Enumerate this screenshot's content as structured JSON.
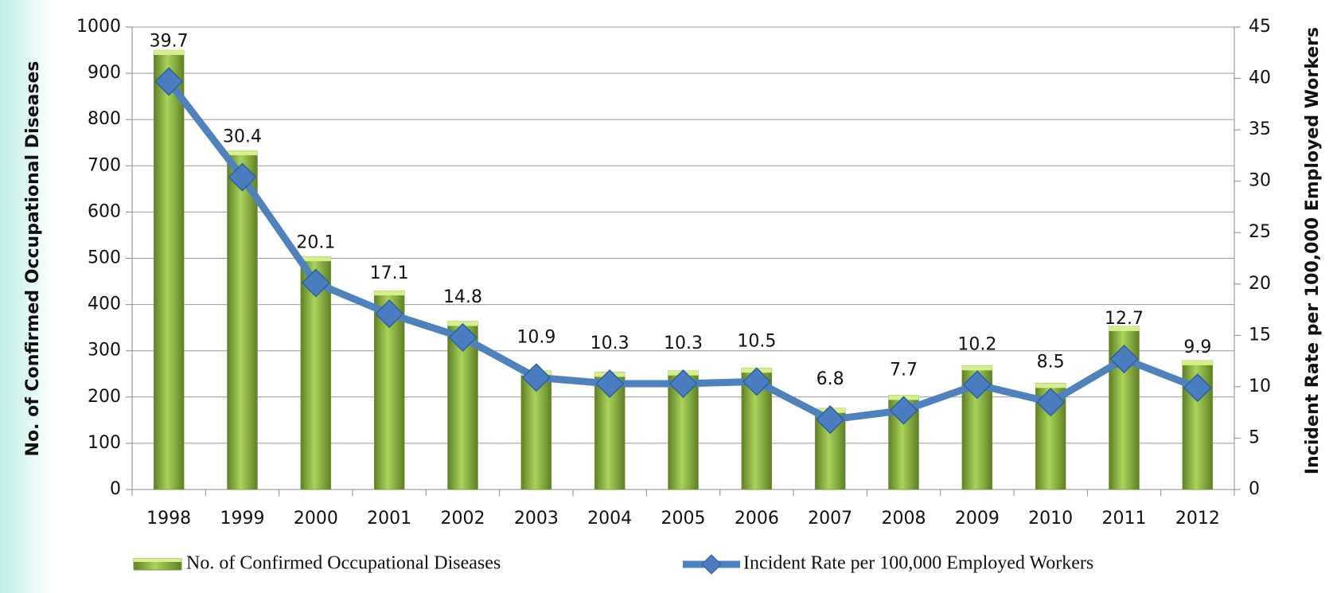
{
  "chart_data": {
    "type": "bar-line",
    "categories": [
      "1998",
      "1999",
      "2000",
      "2001",
      "2002",
      "2003",
      "2004",
      "2005",
      "2006",
      "2007",
      "2008",
      "2009",
      "2010",
      "2011",
      "2012"
    ],
    "series": [
      {
        "name": "No. of Confirmed Occupational Diseases",
        "type": "bar",
        "color": "#9bbb59",
        "values": [
          950,
          733,
          504,
          430,
          364,
          257,
          254,
          257,
          263,
          176,
          204,
          268,
          230,
          353,
          279
        ]
      },
      {
        "name": "Incident Rate per 100,000 Employed Workers",
        "type": "line",
        "axis": "y2",
        "color": "#4f81bd",
        "values": [
          39.7,
          30.4,
          20.1,
          17.1,
          14.8,
          10.9,
          10.3,
          10.3,
          10.5,
          6.8,
          7.7,
          10.2,
          8.5,
          12.7,
          9.9
        ]
      }
    ],
    "y_label": "No. of Confirmed Occupational Diseases",
    "y2_label": "Incident Rate per 100,000 Employed Workers",
    "ylim": [
      0,
      1000
    ],
    "yticks": [
      0,
      100,
      200,
      300,
      400,
      500,
      600,
      700,
      800,
      900,
      1000
    ],
    "y2lim": [
      0,
      45
    ],
    "y2ticks": [
      0,
      5,
      10,
      15,
      20,
      25,
      30,
      35,
      40,
      45
    ],
    "grid": true,
    "legend": "bottom"
  }
}
